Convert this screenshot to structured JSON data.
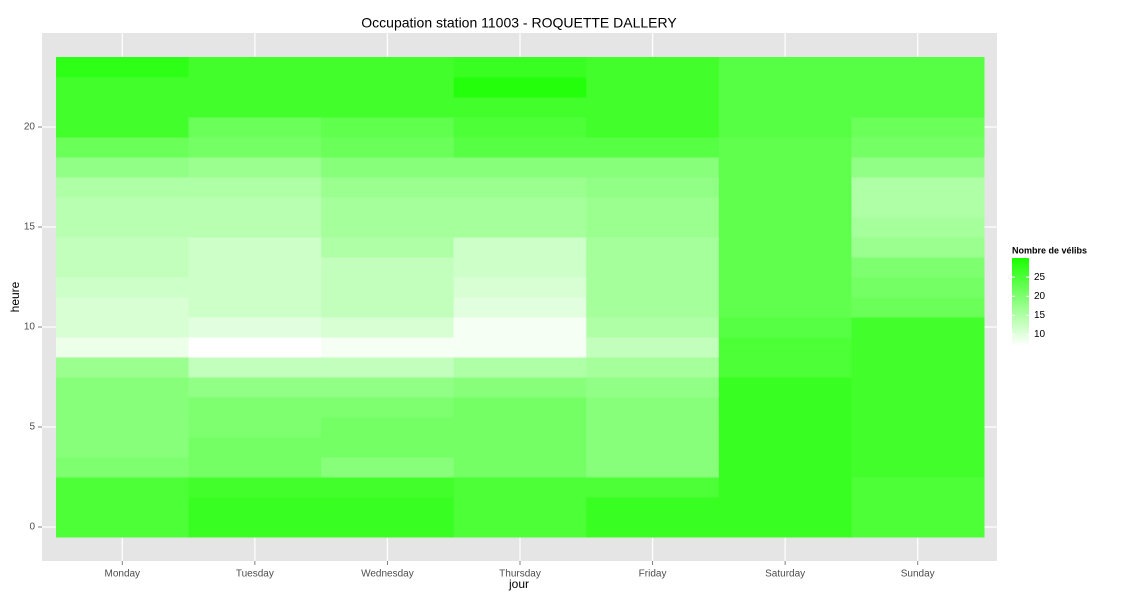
{
  "chart_data": {
    "type": "heatmap",
    "title": "Occupation station 11003 - ROQUETTE DALLERY",
    "x_label": "jour",
    "y_label": "heure",
    "categories": [
      "Monday",
      "Tuesday",
      "Wednesday",
      "Thursday",
      "Friday",
      "Saturday",
      "Sunday"
    ],
    "y": [
      0,
      1,
      2,
      3,
      4,
      5,
      6,
      7,
      8,
      9,
      10,
      11,
      12,
      13,
      14,
      15,
      16,
      17,
      18,
      19,
      20,
      21,
      22,
      23
    ],
    "values": [
      [
        25,
        25,
        25,
        20,
        19,
        19,
        19,
        19,
        17,
        9,
        11,
        11,
        12,
        13,
        13,
        14,
        14,
        15,
        18,
        22,
        26,
        26,
        26,
        28
      ],
      [
        27,
        27,
        26,
        21,
        21,
        20,
        20,
        18,
        13,
        7,
        10,
        12,
        12,
        12,
        12,
        14,
        14,
        15,
        17,
        21,
        22,
        26,
        26,
        26
      ],
      [
        27,
        27,
        26,
        19,
        21,
        21,
        20,
        18,
        13,
        8,
        11,
        13,
        13,
        13,
        15,
        16,
        16,
        17,
        19,
        22,
        23,
        26,
        26,
        26
      ],
      [
        25,
        25,
        25,
        21,
        21,
        21,
        21,
        19,
        15,
        8,
        8,
        10,
        11,
        12,
        12,
        16,
        16,
        17,
        19,
        24,
        25,
        26,
        29,
        27
      ],
      [
        27,
        27,
        25,
        19,
        19,
        19,
        19,
        18,
        16,
        13,
        15,
        16,
        16,
        16,
        16,
        17,
        17,
        18,
        19,
        24,
        26,
        26,
        26,
        26
      ],
      [
        27,
        27,
        27,
        27,
        27,
        27,
        27,
        27,
        25,
        25,
        24,
        23,
        23,
        23,
        23,
        23,
        23,
        23,
        23,
        23,
        24,
        24,
        24,
        24
      ],
      [
        25,
        25,
        25,
        26,
        26,
        26,
        26,
        26,
        26,
        26,
        26,
        22,
        21,
        20,
        17,
        16,
        15,
        15,
        18,
        21,
        22,
        24,
        24,
        24
      ]
    ],
    "ylim": [
      -0.5,
      23.5
    ],
    "yticks": [
      0,
      5,
      10,
      15,
      20
    ],
    "grid": true,
    "colorbar": {
      "title": "Nombre de vélibs",
      "low_color": "#ffffff",
      "high_color": "#1aff00",
      "range": [
        7,
        30
      ],
      "ticks": [
        10,
        15,
        20,
        25
      ]
    }
  }
}
